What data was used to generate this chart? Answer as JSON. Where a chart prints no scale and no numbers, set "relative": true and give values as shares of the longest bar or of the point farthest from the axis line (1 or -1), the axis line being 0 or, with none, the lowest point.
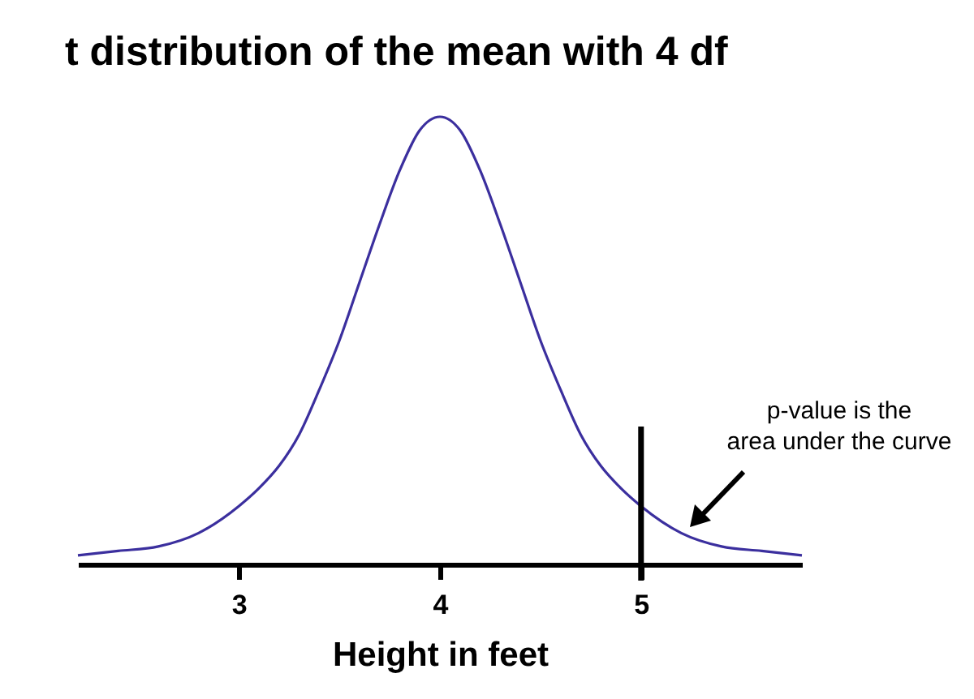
{
  "chart_data": {
    "type": "line",
    "title": "t distribution of the mean with 4 df",
    "xlabel": "Height in feet",
    "relative": true,
    "x": [
      2.2,
      2.4,
      2.6,
      2.8,
      3.0,
      3.1,
      3.2,
      3.3,
      3.4,
      3.5,
      3.6,
      3.7,
      3.8,
      3.9,
      4.0,
      4.1,
      4.2,
      4.3,
      4.4,
      4.5,
      4.6,
      4.7,
      4.8,
      4.9,
      5.0,
      5.2,
      5.4,
      5.6,
      5.8
    ],
    "series": [
      {
        "color": "#3b2f9e",
        "values": [
          0.02,
          0.03,
          0.04,
          0.07,
          0.13,
          0.17,
          0.22,
          0.29,
          0.39,
          0.5,
          0.63,
          0.76,
          0.88,
          0.97,
          1,
          0.97,
          0.88,
          0.76,
          0.63,
          0.5,
          0.39,
          0.29,
          0.22,
          0.17,
          0.13,
          0.07,
          0.04,
          0.03,
          0.02
        ]
      }
    ],
    "xlim": [
      2.2,
      5.8
    ],
    "xticks": [
      3,
      4,
      5
    ],
    "ref_lines": [
      {
        "axis": "x",
        "value": 5
      }
    ],
    "annotations": [
      "p-value is the\narea under the curve"
    ]
  }
}
